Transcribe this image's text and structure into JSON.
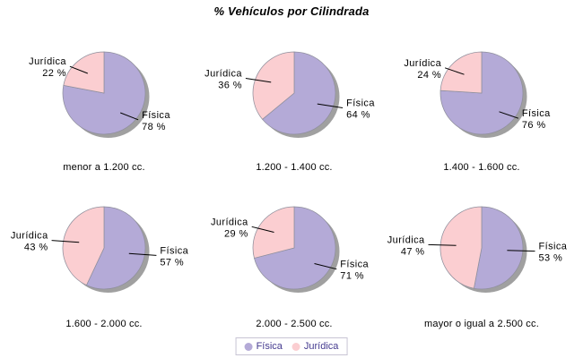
{
  "title": "% Vehículos por Cilindrada",
  "legend": {
    "position": "bottom",
    "text_color": "#443a8f",
    "border_color": "#c8c4d4",
    "items": [
      {
        "label": "Física",
        "color": "#b4aad7"
      },
      {
        "label": "Jurídica",
        "color": "#fbced1"
      }
    ]
  },
  "colors": {
    "background": "#ffffff",
    "shadow": "#a0a0a0",
    "slice_outline": "#8f8f9c",
    "leader_line": "#000000",
    "label_text": "#000000"
  },
  "value_suffix": " %",
  "chart_data": [
    {
      "type": "pie",
      "title": "menor a 1.200 cc.",
      "start_angle_deg": 0,
      "direction": "clockwise",
      "slices": [
        {
          "label": "Física",
          "value": 78
        },
        {
          "label": "Jurídica",
          "value": 22
        }
      ]
    },
    {
      "type": "pie",
      "title": "1.200 - 1.400 cc.",
      "start_angle_deg": 0,
      "direction": "clockwise",
      "slices": [
        {
          "label": "Física",
          "value": 64
        },
        {
          "label": "Jurídica",
          "value": 36
        }
      ]
    },
    {
      "type": "pie",
      "title": "1.400 - 1.600 cc.",
      "start_angle_deg": 0,
      "direction": "clockwise",
      "slices": [
        {
          "label": "Física",
          "value": 76
        },
        {
          "label": "Jurídica",
          "value": 24
        }
      ]
    },
    {
      "type": "pie",
      "title": "1.600 - 2.000 cc.",
      "start_angle_deg": 0,
      "direction": "clockwise",
      "slices": [
        {
          "label": "Física",
          "value": 57
        },
        {
          "label": "Jurídica",
          "value": 43
        }
      ]
    },
    {
      "type": "pie",
      "title": "2.000 - 2.500 cc.",
      "start_angle_deg": 0,
      "direction": "clockwise",
      "slices": [
        {
          "label": "Física",
          "value": 71
        },
        {
          "label": "Jurídica",
          "value": 29
        }
      ]
    },
    {
      "type": "pie",
      "title": "mayor o igual a 2.500 cc.",
      "start_angle_deg": 0,
      "direction": "clockwise",
      "slices": [
        {
          "label": "Física",
          "value": 53
        },
        {
          "label": "Jurídica",
          "value": 47
        }
      ]
    }
  ]
}
